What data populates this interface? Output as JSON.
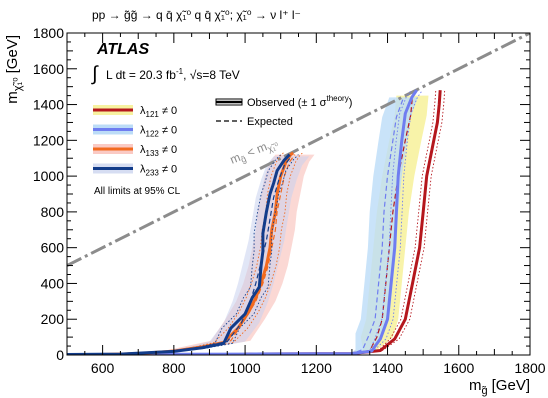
{
  "chart_data": {
    "type": "line",
    "process": "pp → g̃g̃ → q q̄ χ̃₁⁰ q q̄ χ̃₁⁰;  χ̃₁⁰ → ν l⁺ l⁻",
    "experiment": "ATLAS",
    "luminosity_text": "L dt = 20.3 fb",
    "luminosity_sup": "-1",
    "energy_text": ", √s=8 TeV",
    "limits_note": "All limits at 95% CL",
    "xlabel": "m",
    "xlabel_sub": "g̃",
    "xlabel_unit": "[GeV]",
    "ylabel": "m",
    "ylabel_sub": "χ̃₁⁰",
    "ylabel_unit": "[GeV]",
    "xlim": [
      500,
      1800
    ],
    "ylim": [
      0,
      1800
    ],
    "xticks": [
      600,
      800,
      1000,
      1200,
      1400,
      1600,
      1800
    ],
    "yticks": [
      0,
      200,
      400,
      600,
      800,
      1000,
      1200,
      1400,
      1600,
      1800
    ],
    "diagonal_label": "m",
    "diagonal_label_sub1": "g̃",
    "diagonal_label_mid": " < m",
    "diagonal_label_sub2": "χ̃₁⁰",
    "legend_observed": "Observed (± 1 σ",
    "legend_observed_sup": "theory",
    "legend_observed_end": ")",
    "legend_expected": "Expected",
    "colors": {
      "l121": "#b5171d",
      "l122": "#6f7df0",
      "l133": "#f26a1f",
      "l233": "#123c8a",
      "diagonal": "#8c8c8c"
    },
    "series": [
      {
        "name": "λ121 ≠ 0",
        "symbol": "λ",
        "sub": "121",
        "suffix": " ≠ 0",
        "key": "l121",
        "band": "#f7f2a0",
        "band_opacity": 0.9,
        "observed": [
          [
            1000,
            5
          ],
          [
            1300,
            8
          ],
          [
            1380,
            25
          ],
          [
            1420,
            90
          ],
          [
            1450,
            200
          ],
          [
            1470,
            400
          ],
          [
            1490,
            600
          ],
          [
            1500,
            800
          ],
          [
            1510,
            1000
          ],
          [
            1530,
            1200
          ],
          [
            1540,
            1300
          ],
          [
            1545,
            1400
          ],
          [
            1548,
            1480
          ]
        ],
        "obs_shift": 28,
        "expected": [
          [
            1000,
            5
          ],
          [
            1300,
            8
          ],
          [
            1350,
            25
          ],
          [
            1370,
            100
          ],
          [
            1385,
            200
          ],
          [
            1395,
            400
          ],
          [
            1405,
            600
          ],
          [
            1415,
            800
          ],
          [
            1430,
            1000
          ],
          [
            1450,
            1200
          ],
          [
            1465,
            1340
          ],
          [
            1470,
            1450
          ]
        ],
        "exp_shift": 45
      },
      {
        "name": "λ122 ≠ 0",
        "symbol": "λ",
        "sub": "122",
        "suffix": " ≠ 0",
        "key": "l122",
        "band": "#bcdcf7",
        "band_opacity": 0.8,
        "observed": [
          [
            520,
            3
          ],
          [
            1000,
            5
          ],
          [
            1300,
            8
          ],
          [
            1355,
            22
          ],
          [
            1380,
            90
          ],
          [
            1400,
            200
          ],
          [
            1410,
            400
          ],
          [
            1420,
            600
          ],
          [
            1425,
            800
          ],
          [
            1430,
            1000
          ],
          [
            1440,
            1200
          ],
          [
            1450,
            1350
          ],
          [
            1468,
            1440
          ],
          [
            1482,
            1480
          ]
        ],
        "obs_shift": 35,
        "expected": [
          [
            1000,
            5
          ],
          [
            1300,
            8
          ],
          [
            1330,
            30
          ],
          [
            1350,
            120
          ],
          [
            1365,
            200
          ],
          [
            1375,
            400
          ],
          [
            1385,
            600
          ],
          [
            1390,
            800
          ],
          [
            1400,
            1000
          ],
          [
            1415,
            1200
          ],
          [
            1425,
            1330
          ],
          [
            1445,
            1440
          ]
        ],
        "exp_shift": 40
      },
      {
        "name": "λ133 ≠ 0",
        "symbol": "λ",
        "sub": "133",
        "suffix": " ≠ 0",
        "key": "l133",
        "band": "#f8b8b0",
        "band_opacity": 0.55,
        "observed": [
          [
            600,
            3
          ],
          [
            700,
            8
          ],
          [
            800,
            22
          ],
          [
            880,
            45
          ],
          [
            940,
            70
          ],
          [
            980,
            150
          ],
          [
            1010,
            240
          ],
          [
            1030,
            320
          ],
          [
            1045,
            400
          ],
          [
            1060,
            500
          ],
          [
            1070,
            600
          ],
          [
            1075,
            700
          ],
          [
            1085,
            800
          ],
          [
            1090,
            900
          ],
          [
            1100,
            1000
          ],
          [
            1115,
            1080
          ],
          [
            1128,
            1120
          ],
          [
            1135,
            1130
          ]
        ],
        "obs_shift": 60,
        "expected": [
          [
            600,
            3
          ],
          [
            700,
            10
          ],
          [
            800,
            25
          ],
          [
            880,
            50
          ],
          [
            960,
            80
          ],
          [
            1000,
            200
          ],
          [
            1030,
            300
          ],
          [
            1050,
            400
          ],
          [
            1065,
            500
          ],
          [
            1075,
            600
          ],
          [
            1085,
            700
          ],
          [
            1090,
            800
          ],
          [
            1100,
            900
          ],
          [
            1110,
            1000
          ],
          [
            1125,
            1080
          ],
          [
            1140,
            1120
          ]
        ],
        "exp_shift": 55
      },
      {
        "name": "λ233 ≠ 0",
        "symbol": "λ",
        "sub": "233",
        "suffix": " ≠ 0",
        "key": "l233",
        "band": "#c8d2ee",
        "band_opacity": 0.55,
        "observed": [
          [
            500,
            3
          ],
          [
            650,
            5
          ],
          [
            800,
            20
          ],
          [
            880,
            40
          ],
          [
            940,
            65
          ],
          [
            960,
            150
          ],
          [
            1000,
            230
          ],
          [
            1020,
            320
          ],
          [
            1040,
            380
          ],
          [
            1045,
            500
          ],
          [
            1050,
            580
          ],
          [
            1050,
            680
          ],
          [
            1060,
            800
          ],
          [
            1070,
            900
          ],
          [
            1080,
            960
          ],
          [
            1090,
            1030
          ],
          [
            1110,
            1090
          ],
          [
            1125,
            1120
          ]
        ],
        "obs_shift": 55,
        "expected": [
          [
            500,
            3
          ],
          [
            650,
            6
          ],
          [
            800,
            22
          ],
          [
            880,
            45
          ],
          [
            950,
            75
          ],
          [
            990,
            180
          ],
          [
            1015,
            300
          ],
          [
            1030,
            400
          ],
          [
            1045,
            520
          ],
          [
            1060,
            640
          ],
          [
            1070,
            760
          ],
          [
            1080,
            880
          ],
          [
            1095,
            980
          ],
          [
            1110,
            1060
          ],
          [
            1130,
            1110
          ]
        ],
        "exp_shift": 50
      }
    ]
  }
}
